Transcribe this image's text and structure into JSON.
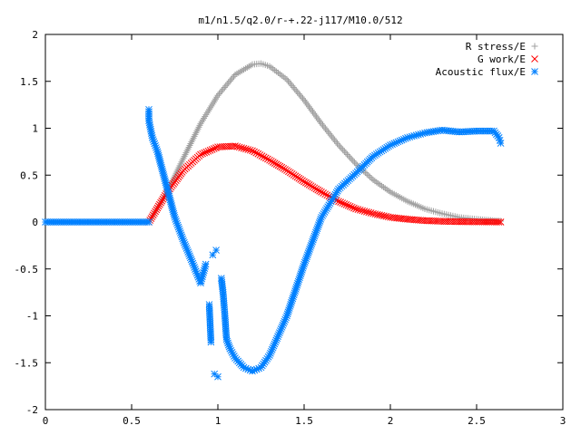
{
  "chart_data": {
    "type": "scatter",
    "title": "m1/n1.5/q2.0/r-+.22-j117/M10.0/512",
    "xlabel": "",
    "ylabel": "",
    "xlim": [
      0,
      3
    ],
    "ylim": [
      -2,
      2
    ],
    "xticks": [
      0,
      0.5,
      1,
      1.5,
      2,
      2.5,
      3
    ],
    "xtick_labels": [
      "0",
      "0.5",
      "1",
      "1.5",
      "2",
      "2.5",
      "3"
    ],
    "yticks": [
      -2,
      -1.5,
      -1,
      -0.5,
      0,
      0.5,
      1,
      1.5,
      2
    ],
    "ytick_labels": [
      "-2",
      "-1.5",
      "-1",
      "-0.5",
      "0",
      "0.5",
      "1",
      "1.5",
      "2"
    ],
    "grid": false,
    "legend_position": "top-right",
    "series": [
      {
        "name": "R stress/E",
        "marker": "plus",
        "color": "#a0a0a0",
        "x": [
          0.6,
          0.7,
          0.8,
          0.9,
          1.0,
          1.1,
          1.2,
          1.25,
          1.3,
          1.4,
          1.5,
          1.6,
          1.7,
          1.8,
          1.9,
          2.0,
          2.1,
          2.2,
          2.3,
          2.4,
          2.5,
          2.64
        ],
        "y": [
          0.0,
          0.3,
          0.68,
          1.05,
          1.35,
          1.57,
          1.68,
          1.69,
          1.66,
          1.52,
          1.3,
          1.05,
          0.82,
          0.62,
          0.45,
          0.32,
          0.22,
          0.14,
          0.09,
          0.05,
          0.03,
          0.01
        ]
      },
      {
        "name": "G work/E",
        "marker": "cross",
        "color": "#ff0000",
        "x": [
          0.6,
          0.7,
          0.8,
          0.9,
          1.0,
          1.1,
          1.2,
          1.3,
          1.4,
          1.5,
          1.6,
          1.7,
          1.8,
          1.9,
          2.0,
          2.1,
          2.2,
          2.3,
          2.4,
          2.5,
          2.64
        ],
        "y": [
          0.0,
          0.3,
          0.55,
          0.72,
          0.8,
          0.81,
          0.76,
          0.66,
          0.55,
          0.43,
          0.32,
          0.22,
          0.14,
          0.09,
          0.05,
          0.03,
          0.015,
          0.008,
          0.004,
          0.002,
          0.0
        ]
      },
      {
        "name": "Acoustic flux/E",
        "marker": "star",
        "color": "#0080ff",
        "x": [
          0.0,
          0.2,
          0.4,
          0.6,
          0.6,
          0.6,
          0.62,
          0.65,
          0.7,
          0.75,
          0.8,
          0.85,
          0.9,
          0.93,
          0.95,
          0.96,
          0.97,
          0.98,
          0.99,
          1.0,
          1.02,
          1.03,
          1.04,
          1.05,
          1.07,
          1.1,
          1.15,
          1.2,
          1.25,
          1.3,
          1.4,
          1.5,
          1.6,
          1.7,
          1.8,
          1.9,
          2.0,
          2.1,
          2.2,
          2.3,
          2.4,
          2.5,
          2.6,
          2.63,
          2.64
        ],
        "y": [
          0.0,
          0.0,
          0.0,
          0.0,
          1.2,
          1.08,
          0.9,
          0.75,
          0.4,
          0.05,
          -0.2,
          -0.42,
          -0.65,
          -0.45,
          -0.88,
          -1.28,
          -0.35,
          -1.62,
          -0.3,
          -1.65,
          -0.6,
          -0.75,
          -0.98,
          -1.25,
          -1.35,
          -1.45,
          -1.55,
          -1.59,
          -1.55,
          -1.42,
          -1.0,
          -0.45,
          0.05,
          0.35,
          0.52,
          0.7,
          0.82,
          0.9,
          0.95,
          0.98,
          0.96,
          0.97,
          0.97,
          0.9,
          0.84
        ]
      }
    ]
  }
}
